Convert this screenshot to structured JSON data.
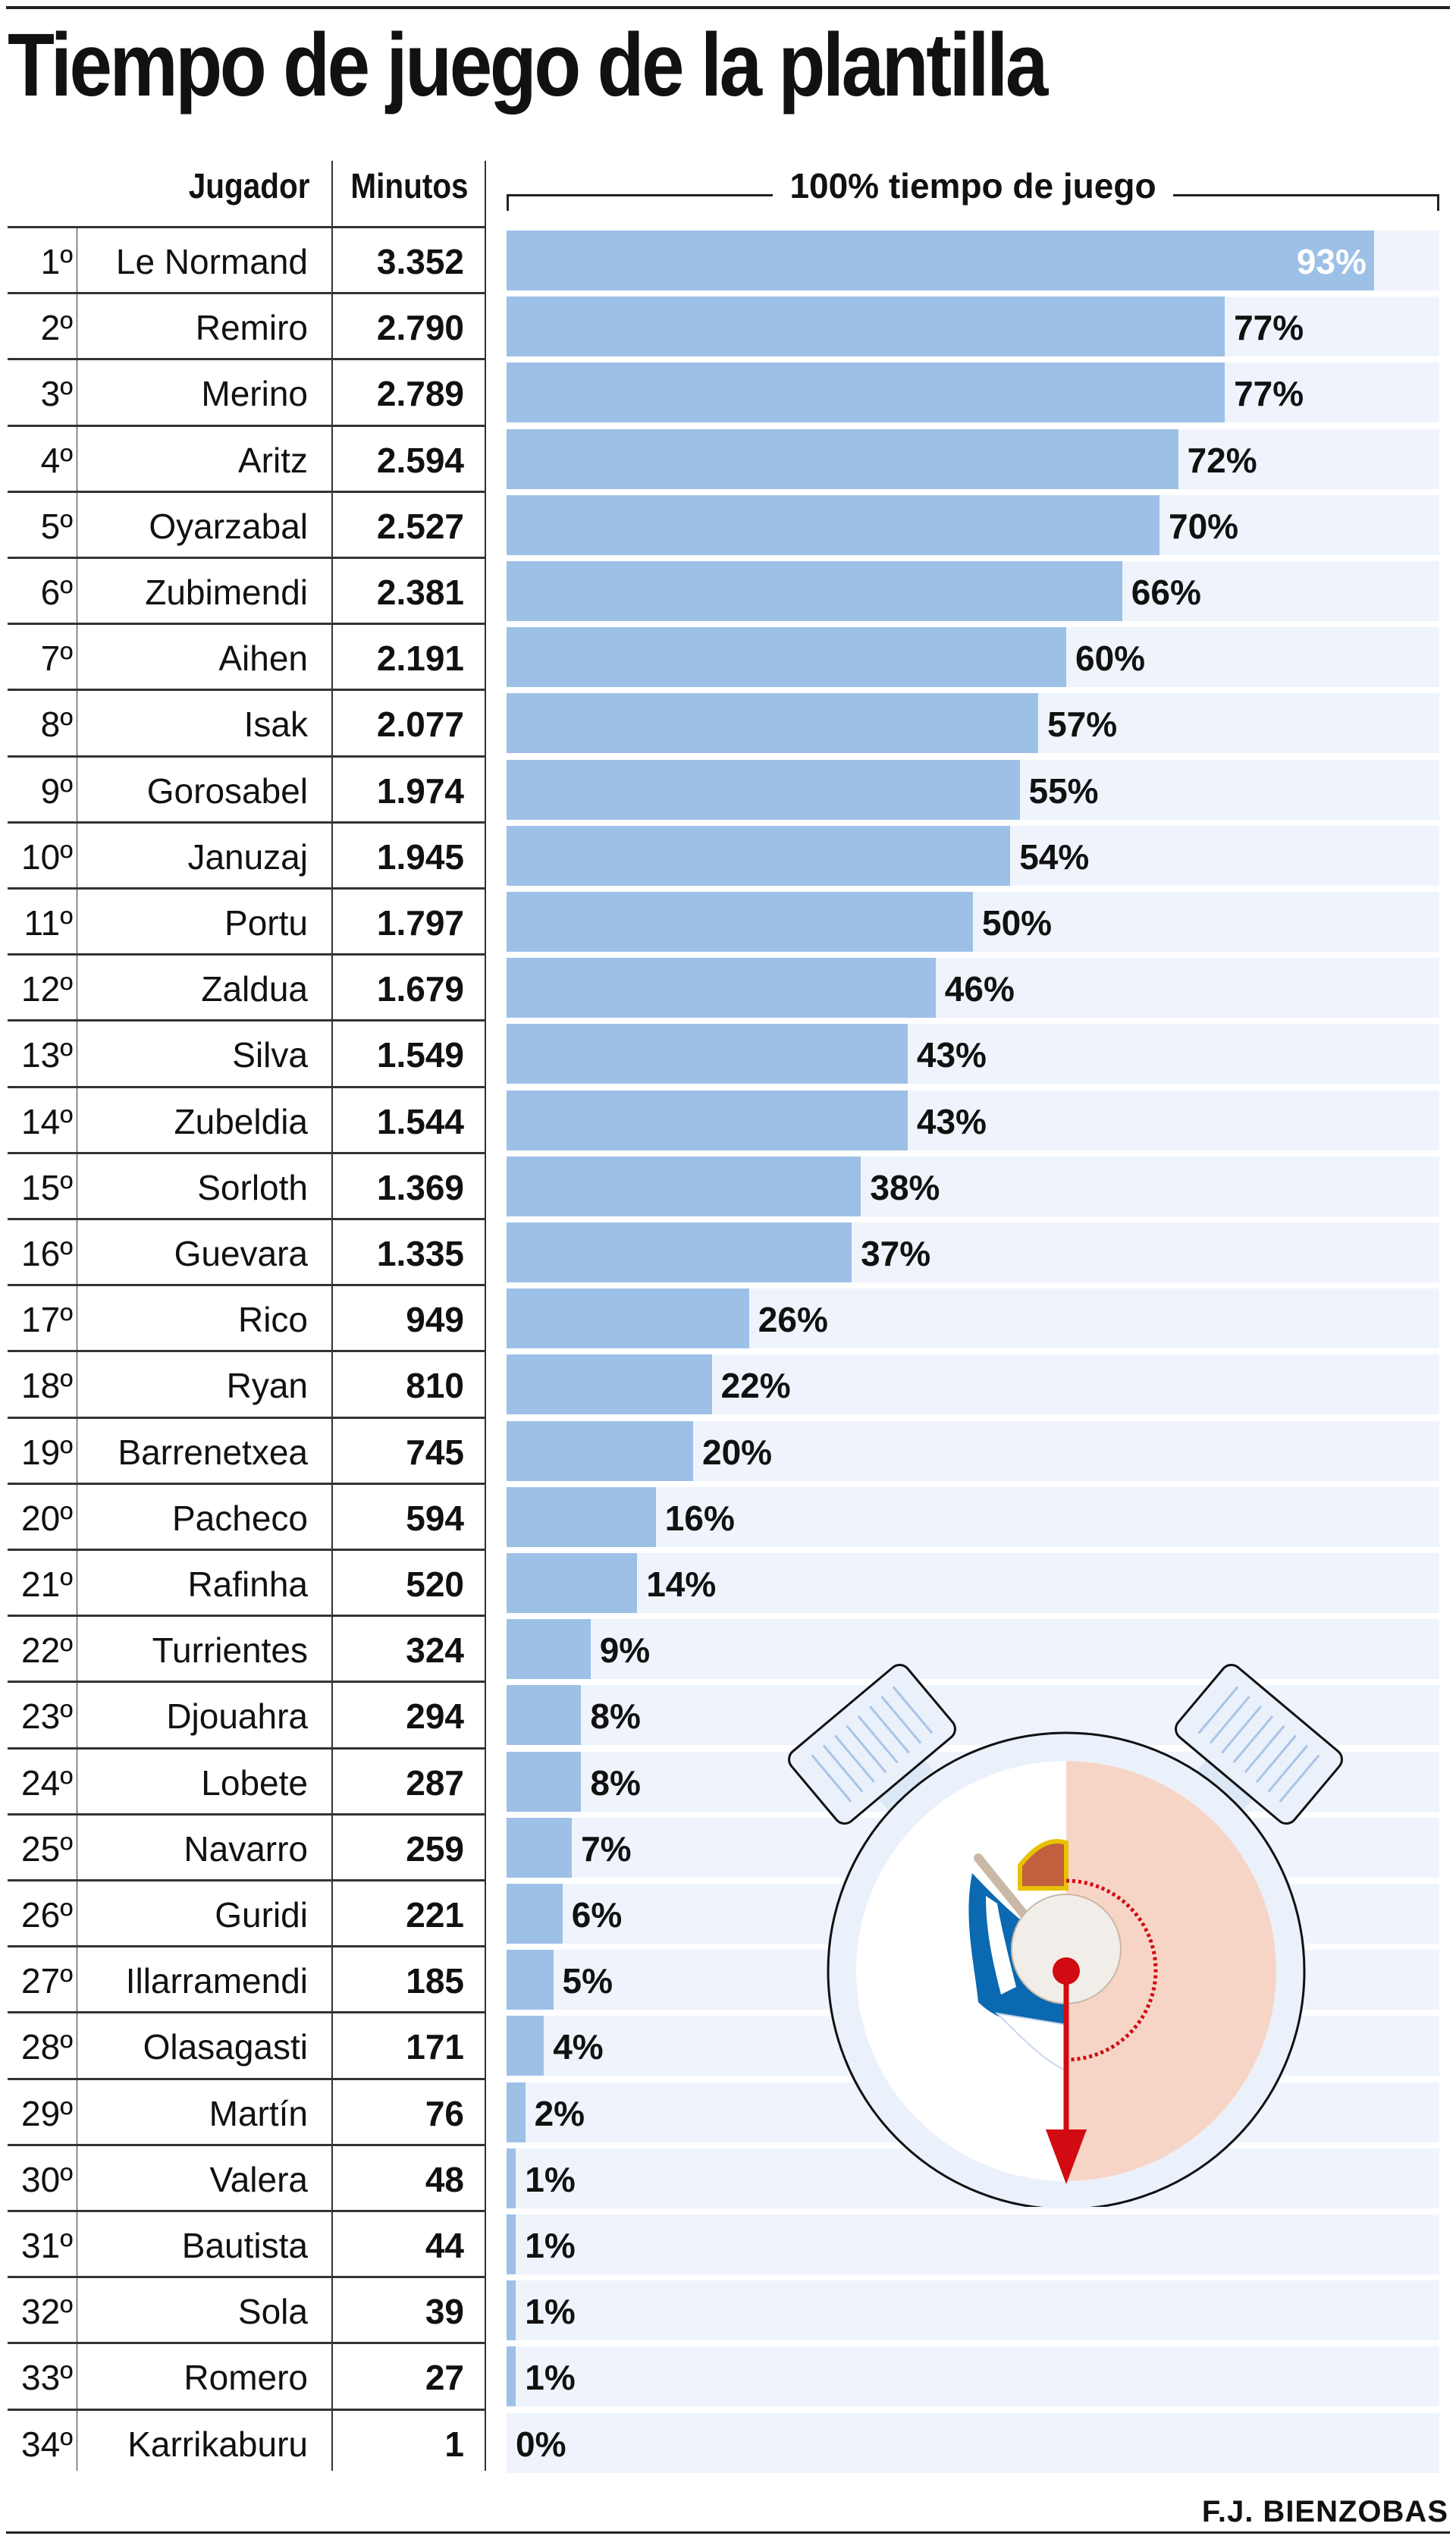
{
  "title": "Tiempo de juego de la plantilla",
  "credit": "F.J. BIENZOBAS",
  "chart_data": {
    "type": "bar",
    "orientation": "horizontal",
    "title": "Tiempo de juego de la plantilla",
    "header_rank": "",
    "header_player": "Jugador",
    "header_minutes": "Minutos",
    "header_bar": "100% tiempo de juego",
    "xlim": [
      0,
      100
    ],
    "colors": {
      "bar": "#9dc0e7",
      "track": "#eff4fc",
      "accent": "#d20a11",
      "half": "#f7d5c6"
    },
    "rows": [
      {
        "rank": "1º",
        "name": "Le Normand",
        "minutes": "3.352",
        "pct": 93
      },
      {
        "rank": "2º",
        "name": "Remiro",
        "minutes": "2.790",
        "pct": 77
      },
      {
        "rank": "3º",
        "name": "Merino",
        "minutes": "2.789",
        "pct": 77
      },
      {
        "rank": "4º",
        "name": "Aritz",
        "minutes": "2.594",
        "pct": 72
      },
      {
        "rank": "5º",
        "name": "Oyarzabal",
        "minutes": "2.527",
        "pct": 70
      },
      {
        "rank": "6º",
        "name": "Zubimendi",
        "minutes": "2.381",
        "pct": 66
      },
      {
        "rank": "7º",
        "name": "Aihen",
        "minutes": "2.191",
        "pct": 60
      },
      {
        "rank": "8º",
        "name": "Isak",
        "minutes": "2.077",
        "pct": 57
      },
      {
        "rank": "9º",
        "name": "Gorosabel",
        "minutes": "1.974",
        "pct": 55
      },
      {
        "rank": "10º",
        "name": "Januzaj",
        "minutes": "1.945",
        "pct": 54
      },
      {
        "rank": "11º",
        "name": "Portu",
        "minutes": "1.797",
        "pct": 50
      },
      {
        "rank": "12º",
        "name": "Zaldua",
        "minutes": "1.679",
        "pct": 46
      },
      {
        "rank": "13º",
        "name": "Silva",
        "minutes": "1.549",
        "pct": 43
      },
      {
        "rank": "14º",
        "name": "Zubeldia",
        "minutes": "1.544",
        "pct": 43
      },
      {
        "rank": "15º",
        "name": "Sorloth",
        "minutes": "1.369",
        "pct": 38
      },
      {
        "rank": "16º",
        "name": "Guevara",
        "minutes": "1.335",
        "pct": 37
      },
      {
        "rank": "17º",
        "name": "Rico",
        "minutes": "949",
        "pct": 26
      },
      {
        "rank": "18º",
        "name": "Ryan",
        "minutes": "810",
        "pct": 22
      },
      {
        "rank": "19º",
        "name": "Barrenetxea",
        "minutes": "745",
        "pct": 20
      },
      {
        "rank": "20º",
        "name": "Pacheco",
        "minutes": "594",
        "pct": 16
      },
      {
        "rank": "21º",
        "name": "Rafinha",
        "minutes": "520",
        "pct": 14
      },
      {
        "rank": "22º",
        "name": "Turrientes",
        "minutes": "324",
        "pct": 9
      },
      {
        "rank": "23º",
        "name": "Djouahra",
        "minutes": "294",
        "pct": 8
      },
      {
        "rank": "24º",
        "name": "Lobete",
        "minutes": "287",
        "pct": 8
      },
      {
        "rank": "25º",
        "name": "Navarro",
        "minutes": "259",
        "pct": 7
      },
      {
        "rank": "26º",
        "name": "Guridi",
        "minutes": "221",
        "pct": 6
      },
      {
        "rank": "27º",
        "name": "Illarramendi",
        "minutes": "185",
        "pct": 5
      },
      {
        "rank": "28º",
        "name": "Olasagasti",
        "minutes": "171",
        "pct": 4
      },
      {
        "rank": "29º",
        "name": "Martín",
        "minutes": "76",
        "pct": 2
      },
      {
        "rank": "30º",
        "name": "Valera",
        "minutes": "48",
        "pct": 1
      },
      {
        "rank": "31º",
        "name": "Bautista",
        "minutes": "44",
        "pct": 1
      },
      {
        "rank": "32º",
        "name": "Sola",
        "minutes": "39",
        "pct": 1
      },
      {
        "rank": "33º",
        "name": "Romero",
        "minutes": "27",
        "pct": 1
      },
      {
        "rank": "34º",
        "name": "Karrikaburu",
        "minutes": "1",
        "pct": 0
      }
    ]
  }
}
